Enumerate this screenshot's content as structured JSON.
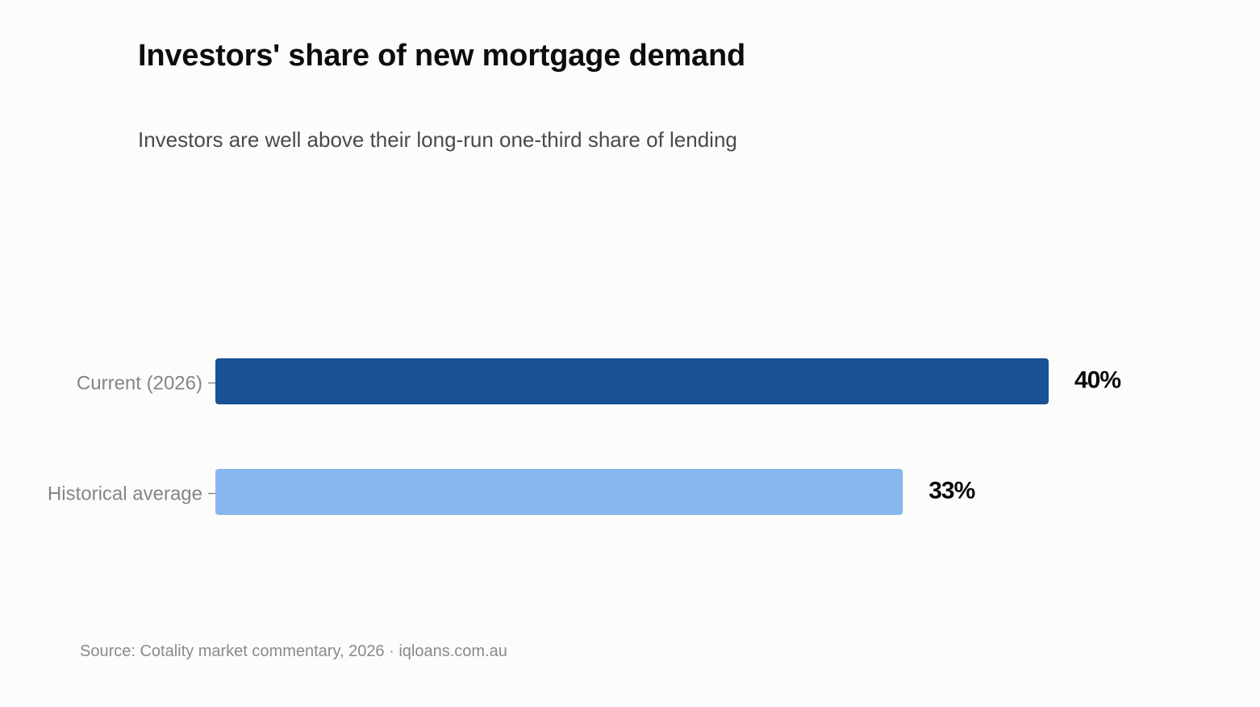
{
  "chart_data": {
    "type": "bar",
    "orientation": "horizontal",
    "title": "Investors' share of new mortgage demand",
    "subtitle": "Investors are well above their long-run one-third share of lending",
    "categories": [
      "Current (2026)",
      "Historical average"
    ],
    "values": [
      40,
      33
    ],
    "value_labels": [
      "40%",
      "33%"
    ],
    "colors": [
      "#1a5094",
      "#88b6ef"
    ],
    "xlim": [
      0,
      40
    ],
    "grid": false,
    "legend": "none",
    "source": "Source: Cotality market commentary, 2026  ·  iqloans.com.au"
  }
}
